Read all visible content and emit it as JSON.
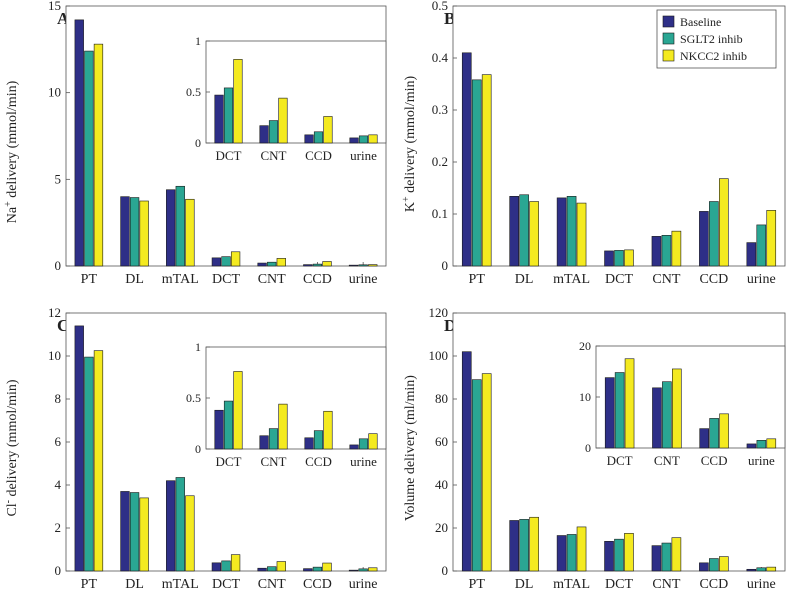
{
  "colors": {
    "series": [
      "#2e2f87",
      "#2aa693",
      "#f4ea20"
    ],
    "axis": "#555555",
    "bar_stroke": "#1a1a1a"
  },
  "legend": {
    "placement": "top-right of panel B",
    "items": [
      "Baseline",
      "SGLT2 inhib",
      "NKCC2 inhib"
    ]
  },
  "chart_data": [
    {
      "type": "bar",
      "panel": "A",
      "ylabel_main": "Na",
      "ylabel_sup": "+",
      "ylabel_rest": " delivery (mmol/min)",
      "categories": [
        "PT",
        "DL",
        "mTAL",
        "DCT",
        "CNT",
        "CCD",
        "urine"
      ],
      "ylim": [
        0,
        15
      ],
      "yticks": [
        0,
        5,
        10,
        15
      ],
      "series": [
        {
          "name": "Baseline",
          "values": [
            14.2,
            4.0,
            4.4,
            0.47,
            0.17,
            0.08,
            0.05
          ]
        },
        {
          "name": "SGLT2 inhib",
          "values": [
            12.4,
            3.95,
            4.6,
            0.54,
            0.22,
            0.11,
            0.07
          ]
        },
        {
          "name": "NKCC2 inhib",
          "values": [
            12.8,
            3.75,
            3.85,
            0.82,
            0.44,
            0.26,
            0.08
          ]
        }
      ],
      "inset": {
        "categories": [
          "DCT",
          "CNT",
          "CCD",
          "urine"
        ],
        "ylim": [
          0,
          1
        ],
        "yticks": [
          0,
          0.5,
          1
        ],
        "ytick_labels": [
          "0",
          "0.5",
          "1"
        ]
      }
    },
    {
      "type": "bar",
      "panel": "B",
      "ylabel_main": "K",
      "ylabel_sup": "+",
      "ylabel_rest": " delivery (mmol/min)",
      "categories": [
        "PT",
        "DL",
        "mTAL",
        "DCT",
        "CNT",
        "CCD",
        "urine"
      ],
      "ylim": [
        0,
        0.5
      ],
      "yticks": [
        0,
        0.1,
        0.2,
        0.3,
        0.4,
        0.5
      ],
      "ytick_labels": [
        "0",
        "0.1",
        "0.2",
        "0.3",
        "0.4",
        "0.5"
      ],
      "series": [
        {
          "name": "Baseline",
          "values": [
            0.41,
            0.134,
            0.131,
            0.029,
            0.057,
            0.105,
            0.045
          ]
        },
        {
          "name": "SGLT2 inhib",
          "values": [
            0.358,
            0.137,
            0.134,
            0.03,
            0.059,
            0.124,
            0.079
          ]
        },
        {
          "name": "NKCC2 inhib",
          "values": [
            0.368,
            0.124,
            0.121,
            0.031,
            0.067,
            0.168,
            0.107
          ]
        }
      ]
    },
    {
      "type": "bar",
      "panel": "C",
      "ylabel_main": "Cl",
      "ylabel_sup": "-",
      "ylabel_rest": " delivery (mmol/min)",
      "categories": [
        "PT",
        "DL",
        "mTAL",
        "DCT",
        "CNT",
        "CCD",
        "urine"
      ],
      "ylim": [
        0,
        12
      ],
      "yticks": [
        0,
        2,
        4,
        6,
        8,
        10,
        12
      ],
      "series": [
        {
          "name": "Baseline",
          "values": [
            11.4,
            3.7,
            4.2,
            0.38,
            0.13,
            0.11,
            0.04
          ]
        },
        {
          "name": "SGLT2 inhib",
          "values": [
            9.95,
            3.65,
            4.35,
            0.47,
            0.2,
            0.18,
            0.1
          ]
        },
        {
          "name": "NKCC2 inhib",
          "values": [
            10.25,
            3.4,
            3.5,
            0.76,
            0.44,
            0.37,
            0.15
          ]
        }
      ],
      "inset": {
        "categories": [
          "DCT",
          "CNT",
          "CCD",
          "urine"
        ],
        "ylim": [
          0,
          1
        ],
        "yticks": [
          0,
          0.5,
          1
        ],
        "ytick_labels": [
          "0",
          "0.5",
          "1"
        ]
      }
    },
    {
      "type": "bar",
      "panel": "D",
      "ylabel_main": "Volume delivery (ml/min)",
      "ylabel_sup": "",
      "ylabel_rest": "",
      "categories": [
        "PT",
        "DL",
        "mTAL",
        "DCT",
        "CNT",
        "CCD",
        "urine"
      ],
      "ylim": [
        0,
        120
      ],
      "yticks": [
        0,
        20,
        40,
        60,
        80,
        100,
        120
      ],
      "series": [
        {
          "name": "Baseline",
          "values": [
            102,
            23.5,
            16.5,
            13.8,
            11.8,
            3.8,
            0.8
          ]
        },
        {
          "name": "SGLT2 inhib",
          "values": [
            89,
            24,
            17,
            14.8,
            13,
            5.8,
            1.5
          ]
        },
        {
          "name": "NKCC2 inhib",
          "values": [
            91.8,
            25,
            20.5,
            17.5,
            15.5,
            6.7,
            1.8
          ]
        }
      ],
      "inset": {
        "categories": [
          "DCT",
          "CNT",
          "CCD",
          "urine"
        ],
        "ylim": [
          0,
          20
        ],
        "yticks": [
          0,
          10,
          20
        ],
        "ytick_labels": [
          "0",
          "10",
          "20"
        ]
      }
    }
  ]
}
